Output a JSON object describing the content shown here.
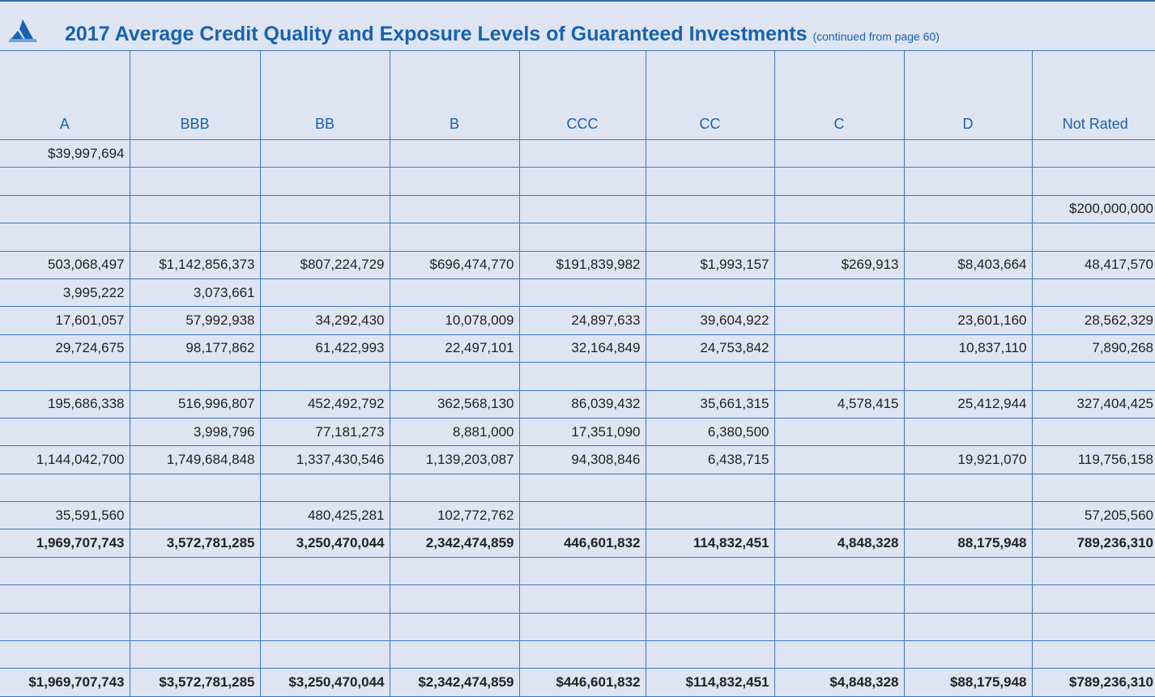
{
  "header": {
    "title": "2017 Average Credit Quality and Exposure Levels of Guaranteed Investments",
    "subtitle": "(continued from page 60)"
  },
  "table": {
    "columns": [
      "A",
      "BBB",
      "BB",
      "B",
      "CCC",
      "CC",
      "C",
      "D",
      "Not Rated"
    ],
    "bold_rows": [
      14,
      19
    ],
    "rows": [
      [
        "$39,997,694",
        null,
        null,
        null,
        null,
        null,
        null,
        null,
        null
      ],
      [
        null,
        null,
        null,
        null,
        null,
        null,
        null,
        null,
        null
      ],
      [
        null,
        null,
        null,
        null,
        null,
        null,
        null,
        null,
        "$200,000,000"
      ],
      [
        null,
        null,
        null,
        null,
        null,
        null,
        null,
        null,
        null
      ],
      [
        "503,068,497",
        "$1,142,856,373",
        "$807,224,729",
        "$696,474,770",
        "$191,839,982",
        "$1,993,157",
        "$269,913",
        "$8,403,664",
        "48,417,570"
      ],
      [
        "3,995,222",
        "3,073,661",
        null,
        null,
        null,
        null,
        null,
        null,
        null
      ],
      [
        "17,601,057",
        "57,992,938",
        "34,292,430",
        "10,078,009",
        "24,897,633",
        "39,604,922",
        null,
        "23,601,160",
        "28,562,329"
      ],
      [
        "29,724,675",
        "98,177,862",
        "61,422,993",
        "22,497,101",
        "32,164,849",
        "24,753,842",
        null,
        "10,837,110",
        "7,890,268"
      ],
      [
        null,
        null,
        null,
        null,
        null,
        null,
        null,
        null,
        null
      ],
      [
        "195,686,338",
        "516,996,807",
        "452,492,792",
        "362,568,130",
        "86,039,432",
        "35,661,315",
        "4,578,415",
        "25,412,944",
        "327,404,425"
      ],
      [
        null,
        "3,998,796",
        "77,181,273",
        "8,881,000",
        "17,351,090",
        "6,380,500",
        null,
        null,
        null
      ],
      [
        "1,144,042,700",
        "1,749,684,848",
        "1,337,430,546",
        "1,139,203,087",
        "94,308,846",
        "6,438,715",
        null,
        "19,921,070",
        "119,756,158"
      ],
      [
        null,
        null,
        null,
        null,
        null,
        null,
        null,
        null,
        null
      ],
      [
        "35,591,560",
        null,
        "480,425,281",
        "102,772,762",
        null,
        null,
        null,
        null,
        "57,205,560"
      ],
      [
        "1,969,707,743",
        "3,572,781,285",
        "3,250,470,044",
        "2,342,474,859",
        "446,601,832",
        "114,832,451",
        "4,848,328",
        "88,175,948",
        "789,236,310"
      ],
      [
        null,
        null,
        null,
        null,
        null,
        null,
        null,
        null,
        null
      ],
      [
        null,
        null,
        null,
        null,
        null,
        null,
        null,
        null,
        null
      ],
      [
        null,
        null,
        null,
        null,
        null,
        null,
        null,
        null,
        null
      ],
      [
        null,
        null,
        null,
        null,
        null,
        null,
        null,
        null,
        null
      ],
      [
        "$1,969,707,743",
        "$3,572,781,285",
        "$3,250,470,044",
        "$2,342,474,859",
        "$446,601,832",
        "$114,832,451",
        "$4,848,328",
        "$88,175,948",
        "$789,236,310"
      ]
    ]
  }
}
